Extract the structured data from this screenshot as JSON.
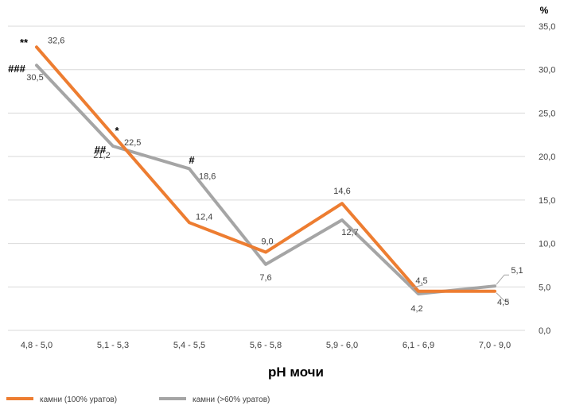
{
  "chart_data": {
    "type": "line",
    "title": "",
    "xlabel": "pH мочи",
    "ylabel": "%",
    "ylim": [
      0,
      35
    ],
    "y_ticks": [
      "0,0",
      "5,0",
      "10,0",
      "15,0",
      "20,0",
      "25,0",
      "30,0",
      "35,0"
    ],
    "categories": [
      "4,8 - 5,0",
      "5,1 - 5,3",
      "5,4 - 5,5",
      "5,6 - 5,8",
      "5,9 - 6,0",
      "6,1 - 6,9",
      "7,0 - 9,0"
    ],
    "series": [
      {
        "name": "камни (100% уратов)",
        "color": "#ED7D31",
        "values": [
          32.6,
          22.5,
          12.4,
          9.0,
          14.6,
          4.5,
          4.5
        ],
        "labels": [
          "32,6",
          "22,5",
          "12,4",
          "9,0",
          "14,6",
          "4,5",
          "4,5"
        ]
      },
      {
        "name": "камни (>60% уратов)",
        "color": "#A5A5A5",
        "values": [
          30.5,
          21.2,
          18.6,
          7.6,
          12.7,
          4.2,
          5.1
        ],
        "labels": [
          "30,5",
          "21,2",
          "18,6",
          "7,6",
          "12,7",
          "4,2",
          "5,1"
        ]
      }
    ],
    "annotations": [
      "**",
      "###",
      "*",
      "##",
      "#"
    ],
    "legend_position": "bottom-left"
  }
}
